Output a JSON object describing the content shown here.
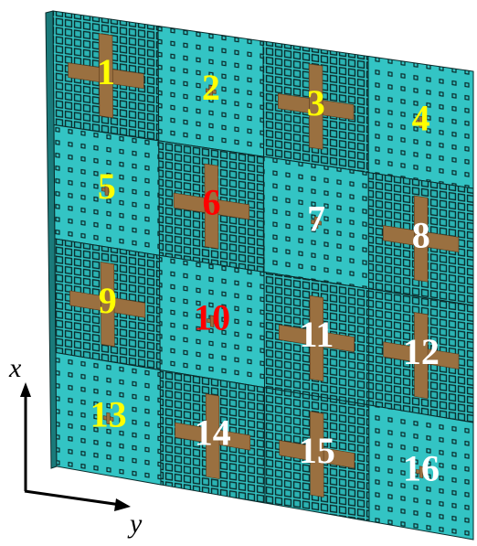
{
  "tiles": [
    {
      "label": "1",
      "color": "#ffff00"
    },
    {
      "label": "2",
      "color": "#ffff00"
    },
    {
      "label": "3",
      "color": "#ffff00"
    },
    {
      "label": "4",
      "color": "#ffff00"
    },
    {
      "label": "5",
      "color": "#ffff00"
    },
    {
      "label": "6",
      "color": "#ff0000"
    },
    {
      "label": "7",
      "color": "#ffffff"
    },
    {
      "label": "8",
      "color": "#ffffff"
    },
    {
      "label": "9",
      "color": "#ffff00"
    },
    {
      "label": "10",
      "color": "#ff0000"
    },
    {
      "label": "11",
      "color": "#ffffff"
    },
    {
      "label": "12",
      "color": "#ffffff"
    },
    {
      "label": "13",
      "color": "#ffff00"
    },
    {
      "label": "14",
      "color": "#ffffff"
    },
    {
      "label": "15",
      "color": "#ffffff"
    },
    {
      "label": "16",
      "color": "#ffffff"
    }
  ],
  "axes": {
    "x": "x",
    "y": "y"
  }
}
